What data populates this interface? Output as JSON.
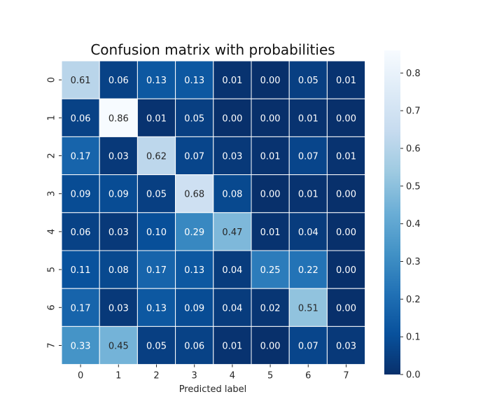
{
  "chart_data": {
    "type": "heatmap",
    "title": "Confusion matrix with probabilities",
    "xlabel": "Predicted label",
    "ylabel": "",
    "x_categories": [
      "0",
      "1",
      "2",
      "3",
      "4",
      "5",
      "6",
      "7"
    ],
    "y_categories": [
      "0",
      "1",
      "2",
      "3",
      "4",
      "5",
      "6",
      "7"
    ],
    "values": [
      [
        0.61,
        0.06,
        0.13,
        0.13,
        0.01,
        0.0,
        0.05,
        0.01
      ],
      [
        0.06,
        0.86,
        0.01,
        0.05,
        0.0,
        0.0,
        0.01,
        0.0
      ],
      [
        0.17,
        0.03,
        0.62,
        0.07,
        0.03,
        0.01,
        0.07,
        0.01
      ],
      [
        0.09,
        0.09,
        0.05,
        0.68,
        0.08,
        0.0,
        0.01,
        0.0
      ],
      [
        0.06,
        0.03,
        0.1,
        0.29,
        0.47,
        0.01,
        0.04,
        0.0
      ],
      [
        0.11,
        0.08,
        0.17,
        0.13,
        0.04,
        0.25,
        0.22,
        0.0
      ],
      [
        0.17,
        0.03,
        0.13,
        0.09,
        0.04,
        0.02,
        0.51,
        0.0
      ],
      [
        0.33,
        0.45,
        0.05,
        0.06,
        0.01,
        0.0,
        0.07,
        0.03
      ]
    ],
    "value_format": "0.00",
    "colormap": "Blues_r",
    "colorbar": {
      "range": [
        0,
        0.86
      ],
      "ticks": [
        "0.0",
        "0.1",
        "0.2",
        "0.3",
        "0.4",
        "0.5",
        "0.6",
        "0.7",
        "0.8"
      ]
    },
    "cell_border_color": "#ffffff",
    "grid": false
  }
}
